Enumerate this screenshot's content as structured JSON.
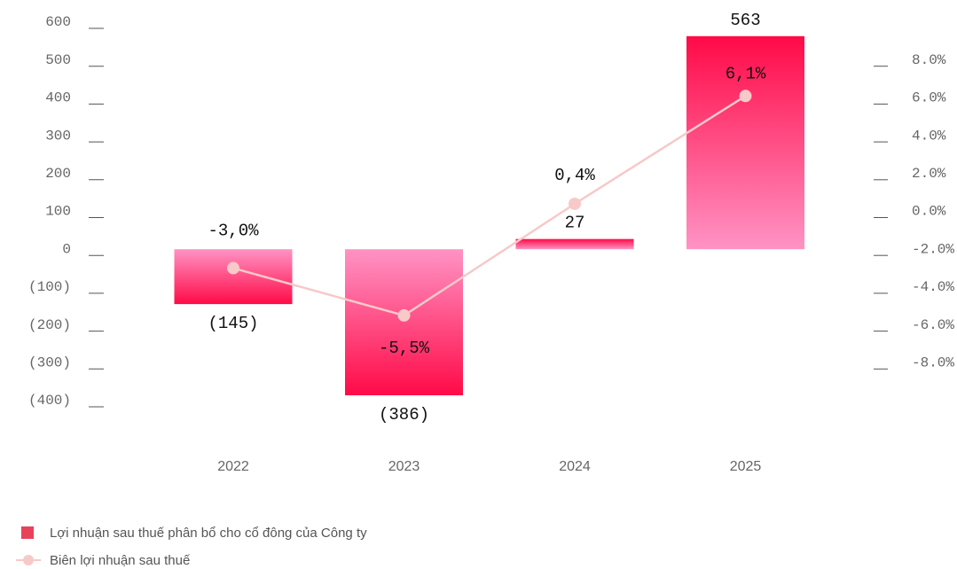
{
  "chart_data": {
    "type": "bar",
    "categories": [
      "2022",
      "2023",
      "2024",
      "2025"
    ],
    "series": [
      {
        "name": "Lợi nhuận sau thuế phân bổ cho cổ đông của Công ty",
        "color": "#ff0a47",
        "values": [
          -145,
          -386,
          27,
          563
        ],
        "value_labels": [
          "(145)",
          "(386)",
          "27",
          "563"
        ]
      },
      {
        "name": "Biên lợi nhuận sau thuế",
        "color": "#f7c9c9",
        "type": "line",
        "axis": "y2",
        "values": [
          -3.0,
          -5.5,
          0.4,
          6.1
        ],
        "value_labels": [
          "-3,0%",
          "-5,5%",
          "0,4%",
          "6,1%"
        ]
      }
    ],
    "ylim": [
      -400,
      600
    ],
    "yticks": [
      600,
      500,
      400,
      300,
      200,
      100,
      0,
      {
        "value": -100,
        "label": "(100)"
      },
      {
        "value": -200,
        "label": "(200)"
      },
      {
        "value": -300,
        "label": "(300)"
      },
      {
        "value": -400,
        "label": "(400)"
      }
    ],
    "y2lim": [
      -10,
      10
    ],
    "y2ticks": [
      {
        "value": 8,
        "label": "8.0%"
      },
      {
        "value": 6,
        "label": "6.0%"
      },
      {
        "value": 4,
        "label": "4.0%"
      },
      {
        "value": 2,
        "label": "2.0%"
      },
      {
        "value": 0,
        "label": "0.0%"
      },
      {
        "value": -2,
        "label": "-2.0%"
      },
      {
        "value": -4,
        "label": "-4.0%"
      },
      {
        "value": -6,
        "label": "-6.0%"
      },
      {
        "value": -8,
        "label": "-8.0%"
      }
    ]
  }
}
